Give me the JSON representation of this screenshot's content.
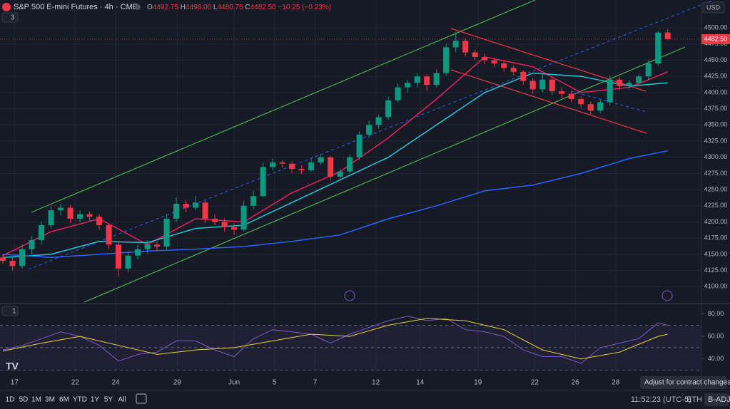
{
  "header": {
    "symbol": "S&P 500 E-mini Futures · 4h · CME",
    "indicators_count": 3,
    "currency": "USD"
  },
  "chart_data": {
    "type": "candlestick",
    "ohlc_legend": {
      "labels": [
        "O",
        "H",
        "L",
        "C"
      ],
      "value_labels": [
        "4492.75",
        "4498.00",
        "4480.75",
        "4482.50"
      ],
      "change": "−10.25 (−0.23%)"
    },
    "up_color": "#089981",
    "down_color": "#f23645",
    "xlim": [
      -0.3,
      72.5
    ],
    "xticks": [
      {
        "value": 1.2,
        "label": "17"
      },
      {
        "value": 7.5,
        "label": "22"
      },
      {
        "value": 11.7,
        "label": "24"
      },
      {
        "value": 18.1,
        "label": "29"
      },
      {
        "value": 24,
        "label": "Jun"
      },
      {
        "value": 28.2,
        "label": "5"
      },
      {
        "value": 32.4,
        "label": "7"
      },
      {
        "value": 38.7,
        "label": "12"
      },
      {
        "value": 43.3,
        "label": "14"
      },
      {
        "value": 49.3,
        "label": "19"
      },
      {
        "value": 55.2,
        "label": "22"
      },
      {
        "value": 59.4,
        "label": "26"
      },
      {
        "value": 63.6,
        "label": "28"
      }
    ],
    "ylim": [
      4075,
      4521
    ],
    "yticks": [
      {
        "value": 4100,
        "label": "4100.00"
      },
      {
        "value": 4125,
        "label": "4125.00"
      },
      {
        "value": 4150,
        "label": "4150.00"
      },
      {
        "value": 4175,
        "label": "4175.00"
      },
      {
        "value": 4200,
        "label": "4200.00"
      },
      {
        "value": 4225,
        "label": "4225.00"
      },
      {
        "value": 4250,
        "label": "4250.00"
      },
      {
        "value": 4275,
        "label": "4275.00"
      },
      {
        "value": 4300,
        "label": "4300.00"
      },
      {
        "value": 4325,
        "label": "4325.00"
      },
      {
        "value": 4350,
        "label": "4350.00"
      },
      {
        "value": 4375,
        "label": "4375.00"
      },
      {
        "value": 4400,
        "label": "4400.00"
      },
      {
        "value": 4425,
        "label": "4425.00"
      },
      {
        "value": 4450,
        "label": "4450.00"
      },
      {
        "value": 4475,
        "label": "4475.00"
      },
      {
        "value": 4500,
        "label": "4500.00"
      }
    ],
    "grid": true,
    "last_price": {
      "value": 4482.5,
      "label": "4482.50"
    },
    "candles": [
      [
        4145,
        4150,
        4135,
        4140
      ],
      [
        4140,
        4145,
        4125,
        4132
      ],
      [
        4132,
        4165,
        4128,
        4158
      ],
      [
        4158,
        4178,
        4150,
        4172
      ],
      [
        4172,
        4200,
        4165,
        4195
      ],
      [
        4195,
        4225,
        4190,
        4218
      ],
      [
        4218,
        4228,
        4210,
        4222
      ],
      [
        4222,
        4226,
        4198,
        4205
      ],
      [
        4205,
        4218,
        4200,
        4212
      ],
      [
        4212,
        4216,
        4200,
        4208
      ],
      [
        4208,
        4212,
        4188,
        4195
      ],
      [
        4195,
        4198,
        4158,
        4165
      ],
      [
        4165,
        4170,
        4115,
        4128
      ],
      [
        4128,
        4155,
        4122,
        4148
      ],
      [
        4148,
        4165,
        4142,
        4158
      ],
      [
        4158,
        4172,
        4152,
        4165
      ],
      [
        4165,
        4170,
        4155,
        4162
      ],
      [
        4162,
        4212,
        4158,
        4205
      ],
      [
        4205,
        4238,
        4200,
        4228
      ],
      [
        4228,
        4234,
        4215,
        4222
      ],
      [
        4222,
        4240,
        4218,
        4230
      ],
      [
        4230,
        4233,
        4198,
        4205
      ],
      [
        4205,
        4212,
        4195,
        4200
      ],
      [
        4200,
        4205,
        4185,
        4192
      ],
      [
        4192,
        4198,
        4180,
        4188
      ],
      [
        4188,
        4232,
        4185,
        4225
      ],
      [
        4225,
        4248,
        4220,
        4240
      ],
      [
        4240,
        4292,
        4238,
        4285
      ],
      [
        4285,
        4298,
        4280,
        4292
      ],
      [
        4292,
        4296,
        4284,
        4290
      ],
      [
        4290,
        4294,
        4276,
        4282
      ],
      [
        4282,
        4288,
        4274,
        4280
      ],
      [
        4280,
        4298,
        4278,
        4292
      ],
      [
        4292,
        4305,
        4288,
        4300
      ],
      [
        4300,
        4302,
        4264,
        4270
      ],
      [
        4270,
        4282,
        4265,
        4278
      ],
      [
        4278,
        4305,
        4275,
        4300
      ],
      [
        4300,
        4340,
        4296,
        4335
      ],
      [
        4335,
        4356,
        4330,
        4350
      ],
      [
        4350,
        4366,
        4344,
        4362
      ],
      [
        4362,
        4394,
        4358,
        4388
      ],
      [
        4388,
        4414,
        4384,
        4408
      ],
      [
        4408,
        4420,
        4400,
        4415
      ],
      [
        4415,
        4430,
        4408,
        4425
      ],
      [
        4425,
        4428,
        4402,
        4412
      ],
      [
        4412,
        4436,
        4408,
        4430
      ],
      [
        4430,
        4476,
        4426,
        4470
      ],
      [
        4470,
        4494,
        4462,
        4480
      ],
      [
        4480,
        4484,
        4456,
        4462
      ],
      [
        4462,
        4466,
        4450,
        4455
      ],
      [
        4455,
        4460,
        4444,
        4450
      ],
      [
        4450,
        4454,
        4440,
        4445
      ],
      [
        4445,
        4448,
        4432,
        4438
      ],
      [
        4438,
        4442,
        4426,
        4432
      ],
      [
        4432,
        4435,
        4412,
        4418
      ],
      [
        4418,
        4422,
        4398,
        4405
      ],
      [
        4405,
        4428,
        4400,
        4420
      ],
      [
        4420,
        4424,
        4396,
        4402
      ],
      [
        4402,
        4408,
        4392,
        4398
      ],
      [
        4398,
        4402,
        4385,
        4390
      ],
      [
        4390,
        4394,
        4376,
        4382
      ],
      [
        4382,
        4386,
        4366,
        4372
      ],
      [
        4372,
        4390,
        4368,
        4385
      ],
      [
        4385,
        4426,
        4380,
        4420
      ],
      [
        4420,
        4424,
        4404,
        4410
      ],
      [
        4410,
        4420,
        4406,
        4415
      ],
      [
        4415,
        4428,
        4410,
        4425
      ],
      [
        4425,
        4450,
        4420,
        4445
      ],
      [
        4445,
        4495,
        4442,
        4492.75
      ],
      [
        4492.75,
        4498,
        4480.75,
        4482.5
      ]
    ],
    "series": [
      {
        "color": "#e91e63",
        "x": [
          0,
          5,
          10,
          15,
          20,
          25,
          30,
          35,
          40,
          45,
          50,
          55,
          60,
          65,
          69
        ],
        "values": [
          4148,
          4185,
          4205,
          4165,
          4205,
          4200,
          4245,
          4278,
          4330,
          4390,
          4455,
          4440,
          4400,
          4408,
          4432
        ]
      },
      {
        "color": "#26c6da",
        "x": [
          0,
          5,
          10,
          15,
          20,
          25,
          30,
          35,
          40,
          45,
          50,
          55,
          60,
          65,
          69
        ],
        "values": [
          4145,
          4150,
          4170,
          4168,
          4190,
          4195,
          4230,
          4265,
          4300,
          4350,
          4400,
          4430,
          4425,
          4410,
          4415
        ]
      },
      {
        "color": "#2962ff",
        "x": [
          0,
          5,
          10,
          15,
          20,
          25,
          30,
          35,
          40,
          45,
          50,
          55,
          60,
          65,
          69
        ],
        "values": [
          4150,
          4145,
          4150,
          4155,
          4158,
          4162,
          4170,
          4180,
          4205,
          4225,
          4248,
          4257,
          4275,
          4298,
          4310
        ]
      }
    ],
    "rsi": {
      "indicator_count": 1,
      "ylim": [
        29,
        88
      ],
      "yticks": [
        {
          "value": 80,
          "label": "80.00"
        },
        {
          "value": 60,
          "label": "60.00"
        },
        {
          "value": 40,
          "label": "40.00"
        }
      ],
      "levels": [
        70,
        50,
        30
      ],
      "series": [
        {
          "color": "#7e57c2",
          "x": [
            0,
            2,
            4,
            6,
            8,
            10,
            12,
            14,
            16,
            18,
            20,
            22,
            24,
            26,
            28,
            30,
            32,
            34,
            36,
            38,
            40,
            42,
            44,
            46,
            48,
            50,
            52,
            54,
            56,
            58,
            60,
            62,
            64,
            66,
            68,
            69
          ],
          "values": [
            48,
            52,
            58,
            64,
            60,
            52,
            38,
            44,
            46,
            56,
            56,
            48,
            42,
            58,
            66,
            64,
            62,
            54,
            62,
            68,
            74,
            78,
            74,
            76,
            66,
            64,
            60,
            48,
            42,
            42,
            36,
            50,
            54,
            58,
            72,
            70
          ]
        },
        {
          "color": "#e6d43a",
          "x": [
            0,
            4,
            8,
            12,
            16,
            20,
            24,
            28,
            32,
            36,
            40,
            44,
            48,
            52,
            56,
            60,
            64,
            68,
            69
          ],
          "values": [
            47,
            54,
            60,
            52,
            44,
            48,
            50,
            56,
            62,
            60,
            70,
            76,
            74,
            66,
            48,
            40,
            46,
            60,
            62
          ]
        }
      ]
    }
  },
  "toolbar": {
    "ranges": [
      "1D",
      "5D",
      "1M",
      "3M",
      "6M",
      "YTD",
      "1Y",
      "5Y",
      "All"
    ],
    "time": "11:52:23 (UTC-5)",
    "session": "ETH",
    "adjust": "B-ADJ",
    "tooltip": "Adjust for contract changes"
  }
}
